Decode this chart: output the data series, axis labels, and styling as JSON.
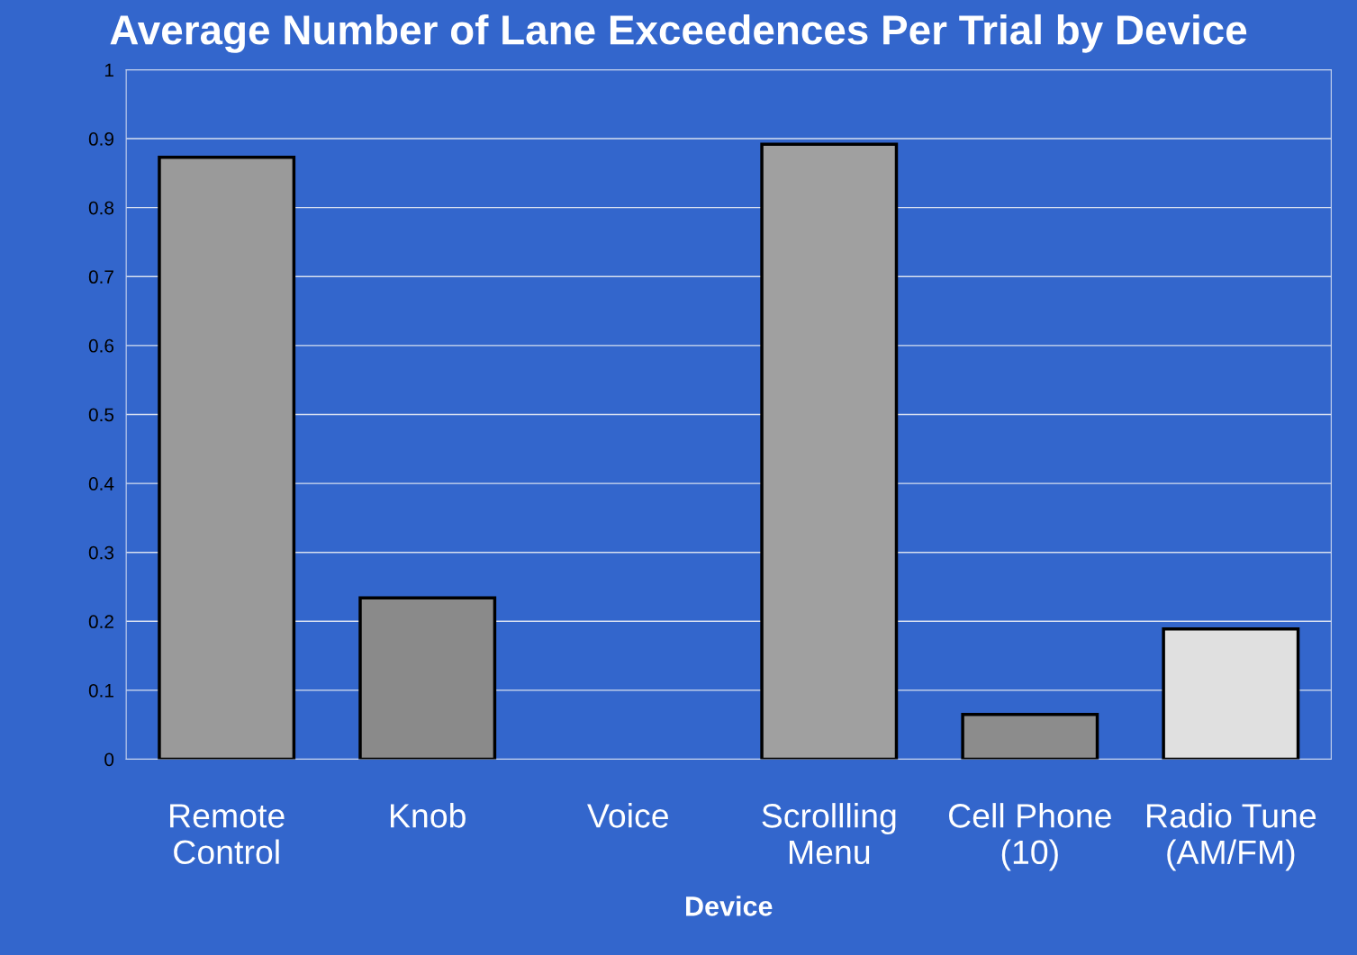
{
  "chart_data": {
    "type": "bar",
    "title": "Average Number of Lane Exceedences Per Trial by Device",
    "xlabel": "Device",
    "categories": [
      "Remote\nControl",
      "Knob",
      "Voice",
      "Scrollling\nMenu",
      "Cell Phone\n(10)",
      "Radio Tune\n(AM/FM)"
    ],
    "values": [
      0.873,
      0.234,
      0,
      0.892,
      0.065,
      0.189
    ],
    "colors": [
      "#9a9a9a",
      "#8a8a8a",
      null,
      "#a0a0a0",
      "#8c8c8c",
      "#e0e0e0"
    ],
    "ylim": [
      0,
      1
    ],
    "yticks": [
      0,
      0.1,
      0.2,
      0.3,
      0.4,
      0.5,
      0.6,
      0.7,
      0.8,
      0.9,
      1
    ],
    "grid": "y"
  }
}
